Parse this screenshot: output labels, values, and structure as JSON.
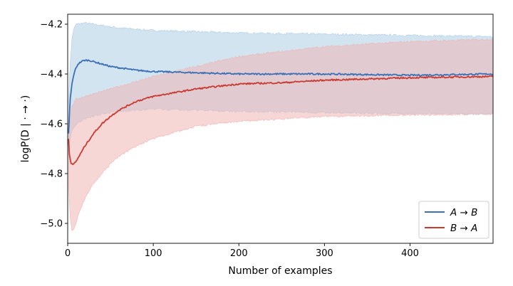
{
  "chart_data": {
    "type": "line",
    "xlabel": "Number of examples",
    "ylabel": "logP(D | · → ·)",
    "xlim": [
      0,
      497
    ],
    "ylim": [
      -5.08,
      -4.16
    ],
    "xticks": [
      0,
      100,
      200,
      300,
      400
    ],
    "yticks": [
      -5.0,
      -4.8,
      -4.6,
      -4.4,
      -4.2
    ],
    "ytick_labels": [
      "−5.0",
      "−4.8",
      "−4.6",
      "−4.4",
      "−4.2"
    ],
    "grid": false,
    "legend_position": "lower-right",
    "series": [
      {
        "name": "A → B",
        "color": "#3b6fb6",
        "band_color": "#aecde6",
        "points": [
          [
            1,
            -4.64
          ],
          [
            3,
            -4.5
          ],
          [
            5,
            -4.44
          ],
          [
            8,
            -4.39
          ],
          [
            12,
            -4.36
          ],
          [
            16,
            -4.35
          ],
          [
            20,
            -4.345
          ],
          [
            25,
            -4.345
          ],
          [
            30,
            -4.35
          ],
          [
            40,
            -4.36
          ],
          [
            50,
            -4.37
          ],
          [
            60,
            -4.375
          ],
          [
            80,
            -4.385
          ],
          [
            100,
            -4.39
          ],
          [
            150,
            -4.395
          ],
          [
            200,
            -4.4
          ],
          [
            300,
            -4.4
          ],
          [
            400,
            -4.405
          ],
          [
            497,
            -4.4
          ]
        ],
        "upper": [
          [
            1,
            -4.5
          ],
          [
            3,
            -4.35
          ],
          [
            5,
            -4.26
          ],
          [
            7,
            -4.22
          ],
          [
            10,
            -4.2
          ],
          [
            20,
            -4.195
          ],
          [
            30,
            -4.2
          ],
          [
            60,
            -4.215
          ],
          [
            100,
            -4.225
          ],
          [
            150,
            -4.23
          ],
          [
            200,
            -4.235
          ],
          [
            300,
            -4.24
          ],
          [
            400,
            -4.245
          ],
          [
            497,
            -4.25
          ]
        ],
        "lower": [
          [
            1,
            -4.72
          ],
          [
            3,
            -4.66
          ],
          [
            5,
            -4.63
          ],
          [
            10,
            -4.6
          ],
          [
            20,
            -4.58
          ],
          [
            40,
            -4.56
          ],
          [
            60,
            -4.55
          ],
          [
            80,
            -4.545
          ],
          [
            100,
            -4.54
          ],
          [
            150,
            -4.545
          ],
          [
            200,
            -4.55
          ],
          [
            300,
            -4.555
          ],
          [
            400,
            -4.56
          ],
          [
            497,
            -4.56
          ]
        ]
      },
      {
        "name": "B → A",
        "color": "#c93a32",
        "band_color": "#eeb6b4",
        "points": [
          [
            1,
            -4.66
          ],
          [
            2,
            -4.72
          ],
          [
            4,
            -4.76
          ],
          [
            6,
            -4.765
          ],
          [
            10,
            -4.75
          ],
          [
            15,
            -4.72
          ],
          [
            20,
            -4.69
          ],
          [
            30,
            -4.64
          ],
          [
            40,
            -4.6
          ],
          [
            50,
            -4.57
          ],
          [
            60,
            -4.545
          ],
          [
            80,
            -4.51
          ],
          [
            100,
            -4.49
          ],
          [
            150,
            -4.46
          ],
          [
            200,
            -4.44
          ],
          [
            250,
            -4.435
          ],
          [
            300,
            -4.425
          ],
          [
            400,
            -4.415
          ],
          [
            497,
            -4.41
          ]
        ],
        "upper": [
          [
            1,
            -4.66
          ],
          [
            3,
            -4.58
          ],
          [
            5,
            -4.53
          ],
          [
            10,
            -4.5
          ],
          [
            20,
            -4.49
          ],
          [
            40,
            -4.47
          ],
          [
            60,
            -4.45
          ],
          [
            80,
            -4.43
          ],
          [
            100,
            -4.41
          ],
          [
            150,
            -4.37
          ],
          [
            200,
            -4.33
          ],
          [
            250,
            -4.31
          ],
          [
            300,
            -4.29
          ],
          [
            400,
            -4.27
          ],
          [
            497,
            -4.26
          ]
        ],
        "lower": [
          [
            1,
            -4.85
          ],
          [
            3,
            -4.98
          ],
          [
            5,
            -5.03
          ],
          [
            8,
            -5.02
          ],
          [
            12,
            -4.97
          ],
          [
            20,
            -4.9
          ],
          [
            30,
            -4.84
          ],
          [
            40,
            -4.8
          ],
          [
            50,
            -4.76
          ],
          [
            60,
            -4.73
          ],
          [
            80,
            -4.69
          ],
          [
            100,
            -4.66
          ],
          [
            150,
            -4.61
          ],
          [
            200,
            -4.59
          ],
          [
            300,
            -4.57
          ],
          [
            400,
            -4.565
          ],
          [
            497,
            -4.56
          ]
        ]
      }
    ]
  }
}
